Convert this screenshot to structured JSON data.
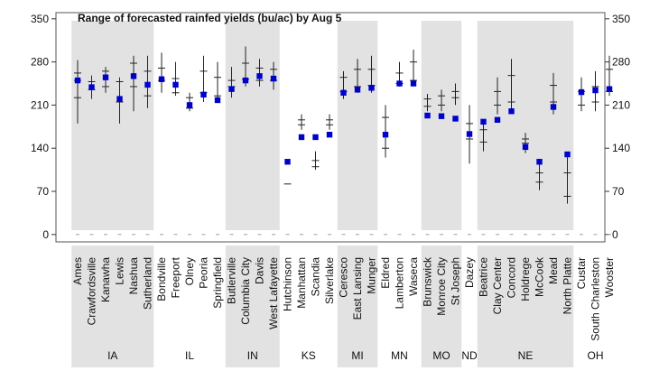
{
  "chart_data": {
    "type": "scatter",
    "title": "Range of forecasted rainfed yields (bu/ac) by Aug 5",
    "xlabel": "",
    "ylabel": "",
    "ylim": [
      -12,
      360
    ],
    "yticks": [
      0,
      70,
      140,
      210,
      280,
      350
    ],
    "grid": false,
    "colors": {
      "point": "#0000cc",
      "bar": "#222222",
      "band": "#e2e2e2"
    },
    "states": [
      {
        "name": "IA",
        "shaded": true,
        "sites": [
          {
            "site": "Ames",
            "value": 250,
            "low": 180,
            "high": 283,
            "ticks": [
              222,
              250,
              262
            ]
          },
          {
            "site": "Crawfordsville",
            "value": 239,
            "low": 220,
            "high": 258,
            "ticks": [
              235,
              248
            ]
          },
          {
            "site": "Kanawha",
            "value": 255,
            "low": 230,
            "high": 272,
            "ticks": [
              240,
              265
            ]
          },
          {
            "site": "Lewis",
            "value": 220,
            "low": 180,
            "high": 255,
            "ticks": [
              215,
              248
            ]
          },
          {
            "site": "Nashua",
            "value": 257,
            "low": 200,
            "high": 290,
            "ticks": [
              240,
              278
            ]
          },
          {
            "site": "Sutherland",
            "value": 243,
            "low": 205,
            "high": 290,
            "ticks": [
              225,
              265
            ]
          }
        ]
      },
      {
        "name": "IL",
        "shaded": false,
        "sites": [
          {
            "site": "Bondville",
            "value": 252,
            "low": 230,
            "high": 295,
            "ticks": [
              250,
              270
            ]
          },
          {
            "site": "Freeport",
            "value": 243,
            "low": 225,
            "high": 280,
            "ticks": [
              230,
              253
            ]
          },
          {
            "site": "Olney",
            "value": 210,
            "low": 200,
            "high": 230,
            "ticks": [
              205,
              222
            ]
          },
          {
            "site": "Peoria",
            "value": 227,
            "low": 215,
            "high": 290,
            "ticks": [
              230,
              265
            ]
          },
          {
            "site": "Springfield",
            "value": 218,
            "low": 215,
            "high": 280,
            "ticks": [
              225,
              255
            ]
          }
        ]
      },
      {
        "name": "IN",
        "shaded": true,
        "sites": [
          {
            "site": "Butlerville",
            "value": 236,
            "low": 222,
            "high": 272,
            "ticks": [
              240,
              250
            ]
          },
          {
            "site": "Columbia City",
            "value": 250,
            "low": 240,
            "high": 305,
            "ticks": [
              252,
              278
            ]
          },
          {
            "site": "Davis",
            "value": 257,
            "low": 240,
            "high": 285,
            "ticks": [
              250,
              270
            ]
          },
          {
            "site": "West Lafayette",
            "value": 253,
            "low": 235,
            "high": 280,
            "ticks": [
              250,
              268
            ]
          }
        ]
      },
      {
        "name": "KS",
        "shaded": false,
        "sites": [
          {
            "site": "Hutchinson",
            "value": 118,
            "low": 82,
            "high": 82,
            "ticks": [
              82
            ]
          },
          {
            "site": "Manhattan",
            "value": 158,
            "low": 170,
            "high": 195,
            "ticks": [
              178,
              186
            ]
          },
          {
            "site": "Scandia",
            "value": 158,
            "low": 105,
            "high": 135,
            "ticks": [
              110,
              120
            ]
          },
          {
            "site": "Silverlake",
            "value": 162,
            "low": 170,
            "high": 195,
            "ticks": [
              178,
              186
            ]
          }
        ]
      },
      {
        "name": "MI",
        "shaded": true,
        "sites": [
          {
            "site": "Ceresco",
            "value": 230,
            "low": 220,
            "high": 265,
            "ticks": [
              232,
              255
            ]
          },
          {
            "site": "East Lansing",
            "value": 235,
            "low": 230,
            "high": 285,
            "ticks": [
              240,
              268
            ]
          },
          {
            "site": "Munger",
            "value": 238,
            "low": 230,
            "high": 290,
            "ticks": [
              242,
              268
            ]
          }
        ]
      },
      {
        "name": "MN",
        "shaded": false,
        "sites": [
          {
            "site": "Eldred",
            "value": 162,
            "low": 125,
            "high": 210,
            "ticks": [
              140,
              190
            ]
          },
          {
            "site": "Lamberton",
            "value": 245,
            "low": 240,
            "high": 280,
            "ticks": [
              245,
              262
            ]
          },
          {
            "site": "Waseca",
            "value": 245,
            "low": 240,
            "high": 300,
            "ticks": [
              250,
              280
            ]
          }
        ]
      },
      {
        "name": "MO",
        "shaded": true,
        "sites": [
          {
            "site": "Brunswick",
            "value": 193,
            "low": 200,
            "high": 228,
            "ticks": [
              208,
              220
            ]
          },
          {
            "site": "Monroe City",
            "value": 192,
            "low": 200,
            "high": 235,
            "ticks": [
              210,
              225
            ]
          },
          {
            "site": "St Joseph",
            "value": 188,
            "low": 210,
            "high": 245,
            "ticks": [
              222,
              232
            ]
          }
        ]
      },
      {
        "name": "ND",
        "shaded": false,
        "sites": [
          {
            "site": "Dazey",
            "value": 163,
            "low": 115,
            "high": 210,
            "ticks": [
              155,
              180
            ]
          }
        ]
      },
      {
        "name": "NE",
        "shaded": true,
        "sites": [
          {
            "site": "Beatrice",
            "value": 183,
            "low": 135,
            "high": 185,
            "ticks": [
              150,
              170
            ]
          },
          {
            "site": "Clay Center",
            "value": 186,
            "low": 195,
            "high": 255,
            "ticks": [
              210,
              232
            ]
          },
          {
            "site": "Concord",
            "value": 200,
            "low": 200,
            "high": 285,
            "ticks": [
              215,
              258
            ]
          },
          {
            "site": "Holdrege",
            "value": 142,
            "low": 132,
            "high": 165,
            "ticks": [
              148,
              155
            ]
          },
          {
            "site": "McCook",
            "value": 118,
            "low": 72,
            "high": 115,
            "ticks": [
              85,
              100
            ]
          },
          {
            "site": "Mead",
            "value": 207,
            "low": 195,
            "high": 262,
            "ticks": [
              215,
              242
            ]
          },
          {
            "site": "North Platte",
            "value": 130,
            "low": 50,
            "high": 130,
            "ticks": [
              62,
              100
            ]
          }
        ]
      },
      {
        "name": "OH",
        "shaded": false,
        "sites": [
          {
            "site": "Custar",
            "value": 231,
            "low": 200,
            "high": 255,
            "ticks": [
              210,
              232
            ]
          },
          {
            "site": "South Charleston",
            "value": 234,
            "low": 200,
            "high": 265,
            "ticks": [
              215,
              240
            ]
          },
          {
            "site": "Wooster",
            "value": 236,
            "low": 225,
            "high": 290,
            "ticks": [
              232,
              268
            ]
          }
        ]
      }
    ]
  }
}
